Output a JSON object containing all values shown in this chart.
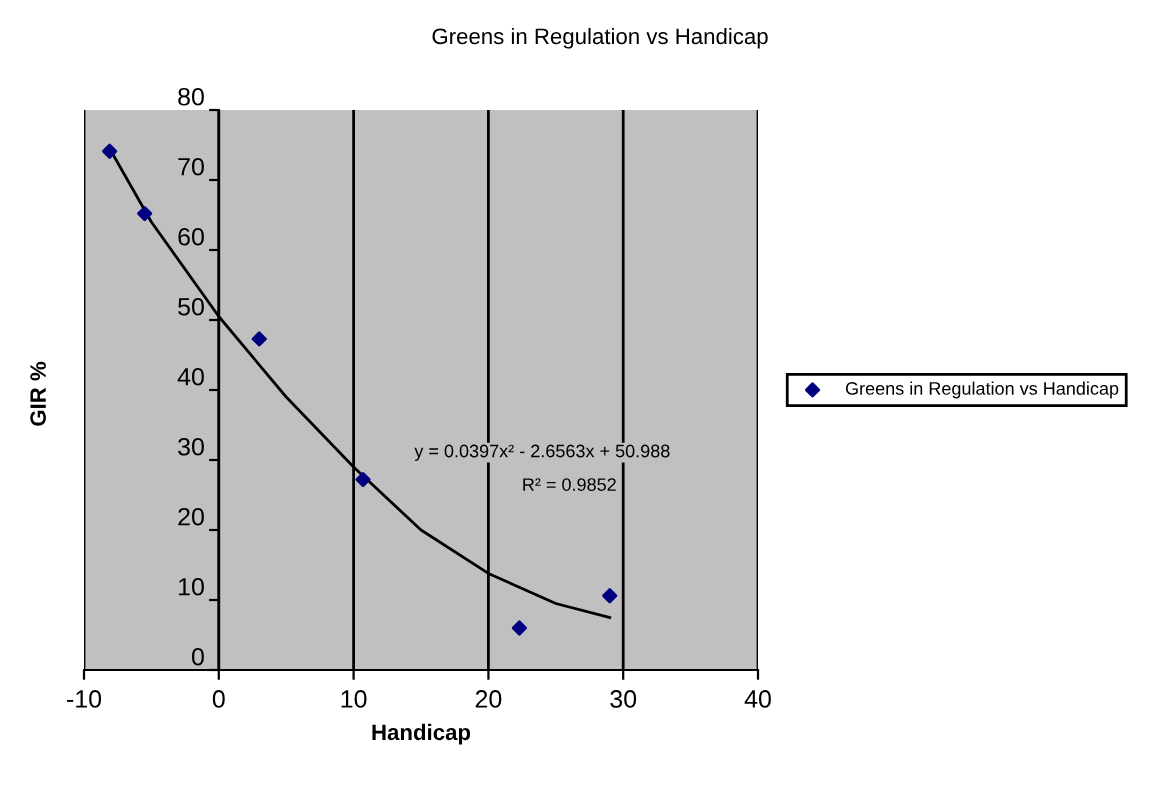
{
  "chart_data": {
    "type": "scatter",
    "title": "Greens in Regulation vs Handicap",
    "xlabel": "Handicap",
    "ylabel": "GIR %",
    "series": [
      {
        "name": "Greens in Regulation vs Handicap",
        "type": "scatter",
        "marker": "diamond",
        "color": "#000080",
        "x": [
          -8.1,
          -5.5,
          3.0,
          10.7,
          22.3,
          29.0
        ],
        "values": [
          74.1,
          65.2,
          47.3,
          27.2,
          6.0,
          10.6
        ]
      },
      {
        "type": "line",
        "marker": "none",
        "color": "#000000",
        "x": [
          -8.1,
          -5,
          0,
          5,
          10,
          15,
          20,
          25,
          29
        ],
        "values": [
          74.5,
          64,
          50.5,
          39,
          29,
          20,
          13.8,
          9.5,
          7.5
        ]
      }
    ],
    "annotations": [
      "y = 0.0397x² - 2.6563x + 50.988",
      "R² = 0.9852"
    ],
    "xlim": [
      -10,
      40
    ],
    "xticks": [
      -10,
      0,
      10,
      20,
      30,
      40
    ],
    "ylim": [
      0,
      80
    ],
    "yticks": [
      0,
      10,
      20,
      30,
      40,
      50,
      60,
      70,
      80
    ],
    "grid": "x",
    "legend": "right"
  }
}
